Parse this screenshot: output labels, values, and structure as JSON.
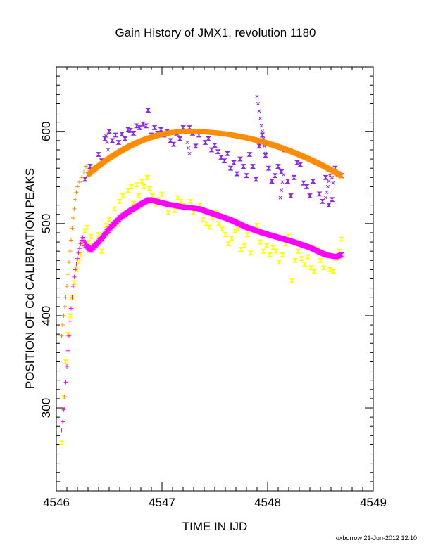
{
  "footer": "oxborrow 21-Jun-2012 12:10",
  "chart_data": {
    "type": "scatter",
    "title": "Gain History of JMX1, revolution 1180",
    "xlabel": "TIME IN IJD",
    "ylabel": "POSITION OF Cd CALIBRATION PEAKS",
    "xlim": [
      4546,
      4549
    ],
    "ylim": [
      210,
      670
    ],
    "xticks": [
      4546,
      4547,
      4548,
      4549
    ],
    "yticks": [
      300,
      400,
      500,
      600
    ],
    "xminor_step": 0.1,
    "yminor_step": 10,
    "grid": false,
    "legend": "none",
    "colors": {
      "purple": "#8a2be2",
      "orange": "#ff8c00",
      "yellow": "#ffff00",
      "magenta": "#ff00ff"
    },
    "series": [
      {
        "color": "purple",
        "marker": "bowtie",
        "points": [
          [
            4546.27,
            548
          ],
          [
            4546.32,
            562
          ],
          [
            4546.36,
            558
          ],
          [
            4546.4,
            575
          ],
          [
            4546.43,
            568
          ],
          [
            4546.46,
            592
          ],
          [
            4546.5,
            600
          ],
          [
            4546.53,
            590
          ],
          [
            4546.56,
            596
          ],
          [
            4546.59,
            588
          ],
          [
            4546.62,
            597
          ],
          [
            4546.65,
            592
          ],
          [
            4546.68,
            602
          ],
          [
            4546.7,
            601
          ],
          [
            4546.73,
            598
          ],
          [
            4546.76,
            606
          ],
          [
            4546.79,
            604
          ],
          [
            4546.82,
            608
          ],
          [
            4546.85,
            606
          ],
          [
            4546.87,
            623
          ],
          [
            4546.9,
            596
          ],
          [
            4546.93,
            604
          ],
          [
            4546.96,
            598
          ],
          [
            4546.99,
            602
          ],
          [
            4547.02,
            596
          ],
          [
            4547.05,
            600
          ],
          [
            4547.08,
            590
          ],
          [
            4547.11,
            586
          ],
          [
            4547.14,
            598
          ],
          [
            4547.17,
            592
          ],
          [
            4547.2,
            604
          ],
          [
            4547.23,
            600
          ],
          [
            4547.26,
            604
          ],
          [
            4547.29,
            598
          ],
          [
            4547.32,
            584
          ],
          [
            4547.35,
            596
          ],
          [
            4547.38,
            600
          ],
          [
            4547.41,
            588
          ],
          [
            4547.44,
            592
          ],
          [
            4547.47,
            580
          ],
          [
            4547.5,
            585
          ],
          [
            4547.53,
            578
          ],
          [
            4547.56,
            572
          ],
          [
            4547.59,
            568
          ],
          [
            4547.62,
            576
          ],
          [
            4547.65,
            560
          ],
          [
            4547.68,
            566
          ],
          [
            4547.71,
            554
          ],
          [
            4547.74,
            570
          ],
          [
            4547.77,
            562
          ],
          [
            4547.8,
            552
          ],
          [
            4547.83,
            575
          ],
          [
            4547.86,
            562
          ],
          [
            4547.89,
            548
          ],
          [
            4547.92,
            584
          ],
          [
            4547.95,
            596
          ],
          [
            4547.98,
            574
          ],
          [
            4548.01,
            560
          ],
          [
            4548.04,
            546
          ],
          [
            4548.07,
            552
          ],
          [
            4548.1,
            562
          ],
          [
            4548.13,
            556
          ],
          [
            4548.16,
            580
          ],
          [
            4548.19,
            546
          ],
          [
            4548.22,
            530
          ],
          [
            4548.25,
            550
          ],
          [
            4548.28,
            566
          ],
          [
            4548.31,
            564
          ],
          [
            4548.34,
            544
          ],
          [
            4548.37,
            540
          ],
          [
            4548.4,
            530
          ],
          [
            4548.43,
            546
          ],
          [
            4548.46,
            566
          ],
          [
            4548.49,
            532
          ],
          [
            4548.52,
            524
          ],
          [
            4548.55,
            550
          ],
          [
            4548.58,
            520
          ],
          [
            4548.61,
            526
          ],
          [
            4548.64,
            560
          ],
          [
            4548.67,
            554
          ],
          [
            4548.7,
            552
          ]
        ]
      },
      {
        "color": "purple",
        "marker": "x",
        "points": [
          [
            4546.47,
            595
          ],
          [
            4546.48,
            588
          ],
          [
            4546.49,
            580
          ],
          [
            4547.24,
            588
          ],
          [
            4547.25,
            582
          ],
          [
            4547.26,
            576
          ],
          [
            4547.9,
            638
          ],
          [
            4547.91,
            630
          ],
          [
            4547.92,
            622
          ],
          [
            4547.93,
            614
          ],
          [
            4547.94,
            606
          ],
          [
            4547.95,
            600
          ],
          [
            4547.96,
            592
          ],
          [
            4547.97,
            584
          ],
          [
            4547.98,
            576
          ],
          [
            4548.12,
            528
          ],
          [
            4548.13,
            536
          ],
          [
            4548.14,
            545
          ],
          [
            4548.15,
            553
          ],
          [
            4548.55,
            528
          ],
          [
            4548.56,
            534
          ],
          [
            4548.57,
            540
          ],
          [
            4548.58,
            546
          ],
          [
            4548.59,
            552
          ],
          [
            4548.6,
            557
          ],
          [
            4548.61,
            550
          ],
          [
            4548.62,
            544
          ]
        ]
      },
      {
        "color": "orange",
        "marker": "plus",
        "points": [
          [
            4546.05,
            378
          ],
          [
            4546.06,
            390
          ],
          [
            4546.07,
            400
          ],
          [
            4546.08,
            410
          ],
          [
            4546.09,
            420
          ],
          [
            4546.1,
            432
          ],
          [
            4546.11,
            445
          ],
          [
            4546.12,
            458
          ],
          [
            4546.13,
            470
          ],
          [
            4546.14,
            482
          ],
          [
            4546.15,
            495
          ],
          [
            4546.16,
            506
          ],
          [
            4546.17,
            516
          ],
          [
            4546.18,
            526
          ],
          [
            4546.19,
            534
          ],
          [
            4546.2,
            540
          ],
          [
            4546.22,
            545
          ],
          [
            4546.24,
            550
          ],
          [
            4546.26,
            556
          ],
          [
            4546.28,
            562
          ]
        ]
      },
      {
        "color": "orange",
        "marker": "bowtie",
        "curve": {
          "x0": 4546.3,
          "x1": 4548.7,
          "step": 0.01,
          "peak_x": 4547.25,
          "peak_y": 600,
          "coeffs": [
            0.12,
            0.012
          ]
        }
      },
      {
        "color": "yellow",
        "marker": "bowtie",
        "points": [
          [
            4546.05,
            262
          ],
          [
            4546.07,
            312
          ],
          [
            4546.09,
            350
          ],
          [
            4546.11,
            380
          ],
          [
            4546.13,
            400
          ],
          [
            4546.15,
            420
          ],
          [
            4546.17,
            436
          ],
          [
            4546.19,
            450
          ],
          [
            4546.21,
            458
          ],
          [
            4546.23,
            466
          ],
          [
            4546.25,
            478
          ],
          [
            4546.27,
            492
          ],
          [
            4546.29,
            496
          ],
          [
            4546.31,
            480
          ],
          [
            4546.33,
            486
          ],
          [
            4546.36,
            476
          ],
          [
            4546.4,
            488
          ],
          [
            4546.43,
            470
          ],
          [
            4546.47,
            498
          ],
          [
            4546.5,
            504
          ],
          [
            4546.53,
            496
          ],
          [
            4546.55,
            516
          ],
          [
            4546.58,
            500
          ],
          [
            4546.6,
            524
          ],
          [
            4546.63,
            530
          ],
          [
            4546.66,
            512
          ],
          [
            4546.68,
            536
          ],
          [
            4546.71,
            540
          ],
          [
            4546.73,
            522
          ],
          [
            4546.76,
            542
          ],
          [
            4546.78,
            530
          ],
          [
            4546.81,
            546
          ],
          [
            4546.83,
            540
          ],
          [
            4546.86,
            550
          ],
          [
            4546.88,
            538
          ],
          [
            4546.91,
            530
          ],
          [
            4546.94,
            520
          ],
          [
            4546.97,
            526
          ],
          [
            4547.0,
            532
          ],
          [
            4547.03,
            522
          ],
          [
            4547.06,
            512
          ],
          [
            4547.09,
            520
          ],
          [
            4547.12,
            514
          ],
          [
            4547.15,
            528
          ],
          [
            4547.18,
            524
          ],
          [
            4547.21,
            520
          ],
          [
            4547.24,
            518
          ],
          [
            4547.27,
            524
          ],
          [
            4547.3,
            512
          ],
          [
            4547.33,
            516
          ],
          [
            4547.36,
            520
          ],
          [
            4547.39,
            504
          ],
          [
            4547.42,
            500
          ],
          [
            4547.45,
            496
          ],
          [
            4547.48,
            506
          ],
          [
            4547.51,
            512
          ],
          [
            4547.54,
            500
          ],
          [
            4547.57,
            494
          ],
          [
            4547.6,
            488
          ],
          [
            4547.63,
            478
          ],
          [
            4547.66,
            484
          ],
          [
            4547.69,
            492
          ],
          [
            4547.72,
            494
          ],
          [
            4547.75,
            472
          ],
          [
            4547.78,
            476
          ],
          [
            4547.81,
            488
          ],
          [
            4547.84,
            468
          ],
          [
            4547.87,
            492
          ],
          [
            4547.9,
            498
          ],
          [
            4547.93,
            480
          ],
          [
            4547.96,
            470
          ],
          [
            4547.99,
            476
          ],
          [
            4548.02,
            466
          ],
          [
            4548.05,
            474
          ],
          [
            4548.08,
            470
          ],
          [
            4548.11,
            458
          ],
          [
            4548.14,
            466
          ],
          [
            4548.17,
            478
          ],
          [
            4548.2,
            486
          ],
          [
            4548.23,
            438
          ],
          [
            4548.26,
            460
          ],
          [
            4548.29,
            470
          ],
          [
            4548.32,
            462
          ],
          [
            4548.35,
            456
          ],
          [
            4548.38,
            464
          ],
          [
            4548.41,
            452
          ],
          [
            4548.44,
            448
          ],
          [
            4548.47,
            472
          ],
          [
            4548.5,
            460
          ],
          [
            4548.53,
            452
          ],
          [
            4548.56,
            466
          ],
          [
            4548.59,
            450
          ],
          [
            4548.62,
            448
          ],
          [
            4548.65,
            462
          ],
          [
            4548.68,
            470
          ],
          [
            4548.7,
            483
          ]
        ]
      },
      {
        "color": "magenta",
        "marker": "plus",
        "points": [
          [
            4546.05,
            276
          ],
          [
            4546.06,
            285
          ],
          [
            4546.07,
            298
          ],
          [
            4546.08,
            312
          ],
          [
            4546.09,
            328
          ],
          [
            4546.1,
            345
          ],
          [
            4546.11,
            362
          ],
          [
            4546.12,
            378
          ],
          [
            4546.13,
            394
          ],
          [
            4546.14,
            408
          ],
          [
            4546.15,
            420
          ],
          [
            4546.16,
            432
          ],
          [
            4546.17,
            442
          ],
          [
            4546.18,
            450
          ],
          [
            4546.19,
            456
          ],
          [
            4546.2,
            462
          ],
          [
            4546.21,
            468
          ],
          [
            4546.22,
            473
          ],
          [
            4546.23,
            478
          ],
          [
            4546.24,
            482
          ],
          [
            4546.25,
            485
          ],
          [
            4546.26,
            482
          ]
        ]
      },
      {
        "color": "magenta",
        "marker": "bowtie",
        "knots": [
          [
            4546.27,
            478
          ],
          [
            4546.32,
            471
          ],
          [
            4546.4,
            480
          ],
          [
            4546.5,
            494
          ],
          [
            4546.6,
            506
          ],
          [
            4546.7,
            514
          ],
          [
            4546.8,
            521
          ],
          [
            4546.88,
            526
          ],
          [
            4546.95,
            524
          ],
          [
            4547.05,
            521
          ],
          [
            4547.2,
            518
          ],
          [
            4547.35,
            516
          ],
          [
            4547.5,
            510
          ],
          [
            4547.65,
            504
          ],
          [
            4547.8,
            496
          ],
          [
            4547.95,
            490
          ],
          [
            4548.1,
            485
          ],
          [
            4548.25,
            480
          ],
          [
            4548.4,
            474
          ],
          [
            4548.55,
            466
          ],
          [
            4548.65,
            464
          ],
          [
            4548.7,
            466
          ]
        ],
        "step": 0.01
      }
    ]
  }
}
